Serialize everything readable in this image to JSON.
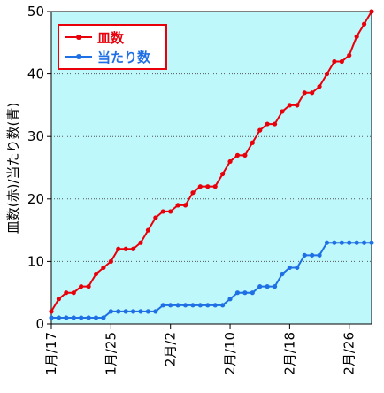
{
  "chart_data": {
    "type": "line",
    "ylabel": "皿数(赤)/当たり数(青)",
    "xlabel": "",
    "ylim": [
      0,
      50
    ],
    "yticks": [
      0,
      10,
      20,
      30,
      40,
      50
    ],
    "xlim": [
      0,
      43
    ],
    "xticks": [
      {
        "x": 0,
        "label": "1月/17"
      },
      {
        "x": 8,
        "label": "1月/25"
      },
      {
        "x": 16,
        "label": "2月/2"
      },
      {
        "x": 24,
        "label": "2月/10"
      },
      {
        "x": 32,
        "label": "2月/18"
      },
      {
        "x": 40,
        "label": "2月/26"
      }
    ],
    "grid": "horizontal-dotted",
    "legend_position": "top-left",
    "plot_background": "#bff8fb",
    "x": [
      0,
      1,
      2,
      3,
      4,
      5,
      6,
      7,
      8,
      9,
      10,
      11,
      12,
      13,
      14,
      15,
      16,
      17,
      18,
      19,
      20,
      21,
      22,
      23,
      24,
      25,
      26,
      27,
      28,
      29,
      30,
      31,
      32,
      33,
      34,
      35,
      36,
      37,
      38,
      39,
      40,
      41,
      42,
      43
    ],
    "series": [
      {
        "name": "皿数",
        "color": "#e8000b",
        "values": [
          2,
          4,
          5,
          5,
          6,
          6,
          8,
          9,
          10,
          12,
          12,
          12,
          13,
          15,
          17,
          18,
          18,
          19,
          19,
          21,
          22,
          22,
          22,
          24,
          26,
          27,
          27,
          29,
          31,
          32,
          32,
          34,
          35,
          35,
          37,
          37,
          38,
          40,
          42,
          42,
          43,
          46,
          48,
          50
        ]
      },
      {
        "name": "当たり数",
        "color": "#1f6fe5",
        "values": [
          1,
          1,
          1,
          1,
          1,
          1,
          1,
          1,
          2,
          2,
          2,
          2,
          2,
          2,
          2,
          3,
          3,
          3,
          3,
          3,
          3,
          3,
          3,
          3,
          4,
          5,
          5,
          5,
          6,
          6,
          6,
          8,
          9,
          9,
          11,
          11,
          11,
          13,
          13,
          13,
          13,
          13,
          13,
          13
        ]
      }
    ]
  }
}
